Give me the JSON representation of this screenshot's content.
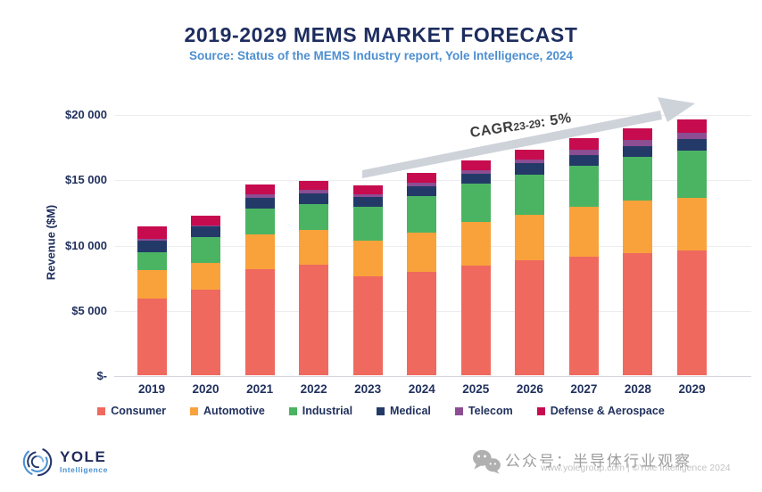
{
  "header": {
    "title": "2019-2029 MEMS MARKET FORECAST",
    "subtitle": "Source: Status of the MEMS Industry report, Yole Intelligence, 2024"
  },
  "chart_data": {
    "type": "bar",
    "stacked": true,
    "title": "2019-2029 MEMS MARKET FORECAST",
    "ylabel": "Revenue ($M)",
    "ylim": [
      0,
      20000
    ],
    "grid": true,
    "ytick_labels_top_down": [
      "$20 000",
      "$15 000",
      "$10 000",
      "$5 000",
      "$-"
    ],
    "categories": [
      "2019",
      "2020",
      "2021",
      "2022",
      "2023",
      "2024",
      "2025",
      "2026",
      "2027",
      "2028",
      "2029"
    ],
    "series": [
      {
        "name": "Consumer",
        "color": "#F0695F",
        "values": [
          5890,
          6550,
          8160,
          8500,
          7570,
          7930,
          8420,
          8800,
          9100,
          9370,
          9550
        ]
      },
      {
        "name": "Automotive",
        "color": "#F9A23C",
        "values": [
          2160,
          2040,
          2620,
          2600,
          2750,
          3000,
          3340,
          3480,
          3790,
          3980,
          4020
        ]
      },
      {
        "name": "Industrial",
        "color": "#4BB462",
        "values": [
          1360,
          1960,
          1970,
          2040,
          2550,
          2800,
          2900,
          3070,
          3140,
          3360,
          3660
        ]
      },
      {
        "name": "Medical",
        "color": "#233A68",
        "values": [
          890,
          820,
          840,
          820,
          780,
          750,
          790,
          900,
          850,
          870,
          890
        ]
      },
      {
        "name": "Telecom",
        "color": "#8C4D93",
        "values": [
          180,
          130,
          300,
          270,
          180,
          230,
          280,
          290,
          410,
          460,
          460
        ]
      },
      {
        "name": "Defense & Aerospace",
        "color": "#C60B4E",
        "values": [
          910,
          730,
          720,
          680,
          680,
          800,
          730,
          760,
          840,
          890,
          1040
        ]
      }
    ],
    "totals": [
      11390,
      12230,
      14610,
      14910,
      14510,
      15510,
      16460,
      17300,
      18130,
      18930,
      19620
    ],
    "annotation": {
      "prefix": "CAGR",
      "subscript": "23-29",
      "suffix": ": 5%"
    },
    "legend_position": "bottom"
  },
  "colors": {
    "title_navy": "#1E2D5F",
    "subtitle_blue": "#4D8FD0",
    "axis_text": "#21315E",
    "gridline": "#ECECF1",
    "arrow_gray": "#CBD1D8",
    "cagr_text": "#3D3D3D"
  },
  "footer": {
    "logo_title": "YOLE",
    "logo_subtitle": "Intelligence",
    "watermark_cn": "公众号：半导体行业观察",
    "watermark_en": "www.yolegroup.com | ©Yole Intelligence 2024"
  }
}
